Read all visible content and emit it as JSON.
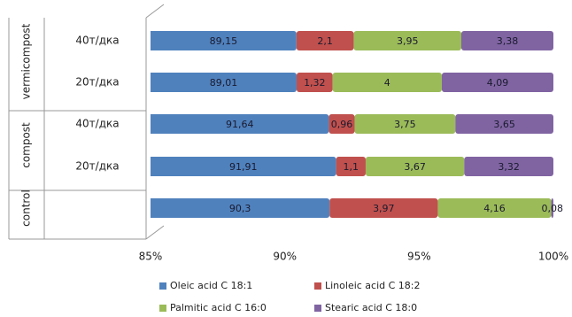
{
  "chart_data": {
    "type": "bar",
    "stacked": "percent",
    "orientation": "horizontal",
    "categories": [
      "40т/дка",
      "20т/дка",
      "40т/дка",
      "20т/дка",
      null
    ],
    "group_labels": [
      "vermicompost",
      "vermicompost",
      "compost",
      "compost",
      "control"
    ],
    "series": [
      {
        "name": "Oleic acid C 18:1",
        "color": "#4f81bd",
        "values": [
          89.15,
          89.01,
          91.64,
          91.91,
          90.3
        ],
        "value_labels": [
          "89,15",
          "89,01",
          "91,64",
          "91,91",
          "90,3"
        ]
      },
      {
        "name": "Linoleic acid C 18:2",
        "color": "#c0504d",
        "values": [
          2.1,
          1.32,
          0.96,
          1.1,
          3.97
        ],
        "value_labels": [
          "2,1",
          "1,32",
          "0,96",
          "1,1",
          "3,97"
        ]
      },
      {
        "name": "Palmitic acid C 16:0",
        "color": "#9bbb59",
        "values": [
          3.95,
          4,
          3.75,
          3.67,
          4.16
        ],
        "value_labels": [
          "3,95",
          "4",
          "3,75",
          "3,67",
          "4,16"
        ]
      },
      {
        "name": "Stearic acid C 18:0",
        "color": "#8064a2",
        "values": [
          3.38,
          4.09,
          3.65,
          3.32,
          0.08
        ],
        "value_labels": [
          "3,38",
          "4,09",
          "3,65",
          "3,32",
          "0,08"
        ]
      }
    ],
    "xlim": [
      85,
      100
    ],
    "xticks": [
      {
        "value": 85,
        "label": "85%"
      },
      {
        "value": 90,
        "label": "90%"
      },
      {
        "value": 95,
        "label": "95%"
      },
      {
        "value": 100,
        "label": "100%"
      }
    ],
    "legend": "bottom"
  }
}
